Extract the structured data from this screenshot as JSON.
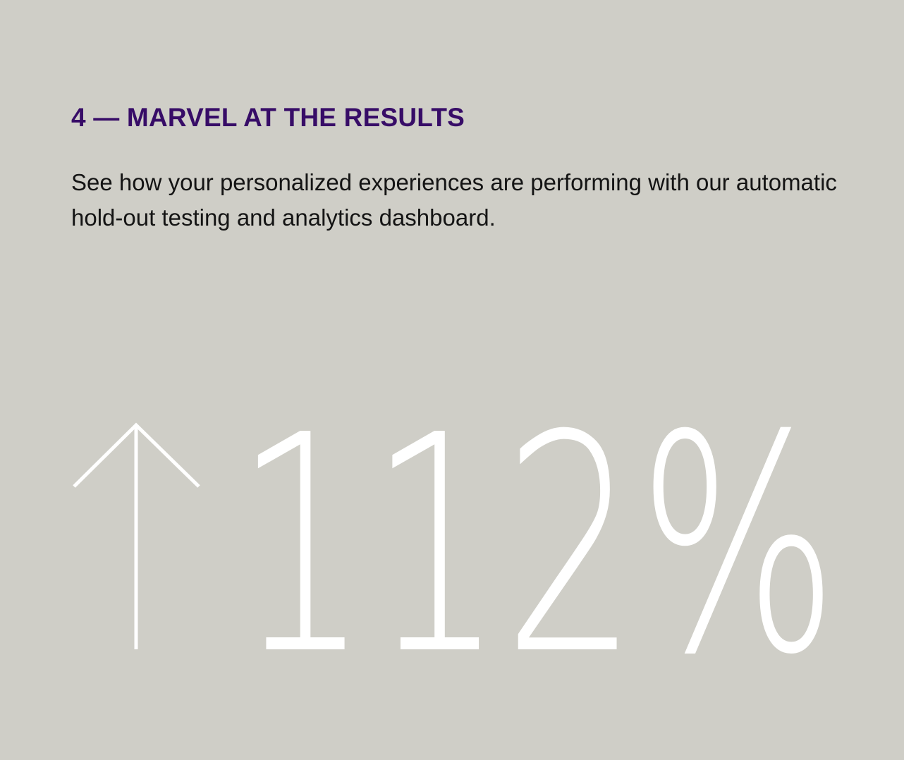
{
  "section": {
    "heading": "4 — MARVEL AT THE RESULTS",
    "description": "See how your personalized experiences are performing with our automatic hold-out testing and analytics dashboard."
  },
  "stat": {
    "direction_icon": "arrow-up-icon",
    "value": "112%",
    "color": "#ffffff"
  },
  "colors": {
    "background": "#cfcec7",
    "heading": "#370c67",
    "text": "#141414"
  }
}
